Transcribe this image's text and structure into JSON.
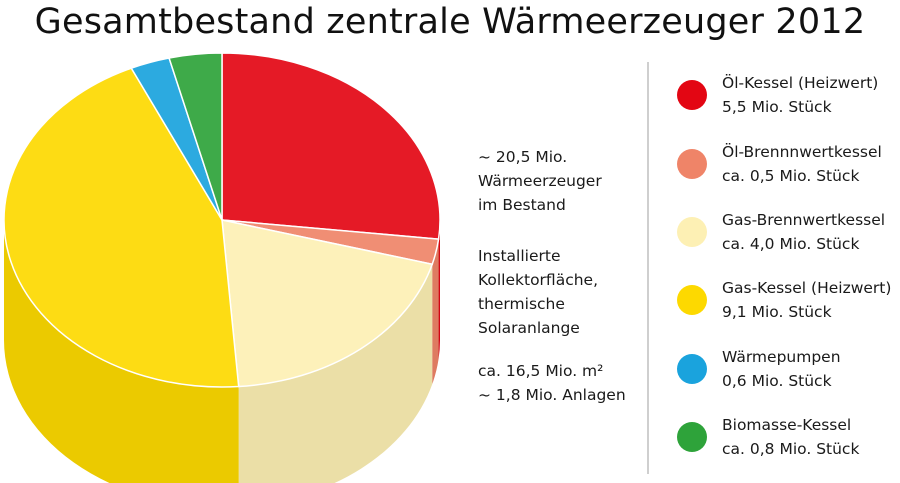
{
  "chart_data": {
    "type": "pie",
    "title": "Gesamtbestand zentrale Wärmeerzeuger 2012",
    "unit": "Mio. Stück",
    "series": [
      {
        "name": "Öl-Kessel (Heizwert)",
        "value": 5.5,
        "label": "5,5 Mio. Stück",
        "color": "#e30613"
      },
      {
        "name": "Öl-Brennnwertkessel",
        "value": 0.5,
        "label": "ca. 0,5 Mio. Stück",
        "color": "#ef8468"
      },
      {
        "name": "Gas-Brennwertkessel",
        "value": 4.0,
        "label": "ca. 4,0 Mio. Stück",
        "color": "#fdf0b4"
      },
      {
        "name": "Gas-Kessel (Heizwert)",
        "value": 9.1,
        "label": "9,1 Mio. Stück",
        "color": "#fdd900"
      },
      {
        "name": "Wärmepumpen",
        "value": 0.6,
        "label": "0,6 Mio. Stück",
        "color": "#1aa3dd"
      },
      {
        "name": "Biomasse-Kessel",
        "value": 0.8,
        "label": "ca. 0,8 Mio. Stück",
        "color": "#2ea33a"
      }
    ],
    "legend_position": "right",
    "annotations": [
      "~ 20,5 Mio.\nWärmeerzeuger\nim Bestand",
      "Installierte\nKollektorfläche,\nthermische\nSolaranlange",
      "ca. 16,5 Mio. m²\n~ 1,8 Mio. Anlagen"
    ]
  }
}
